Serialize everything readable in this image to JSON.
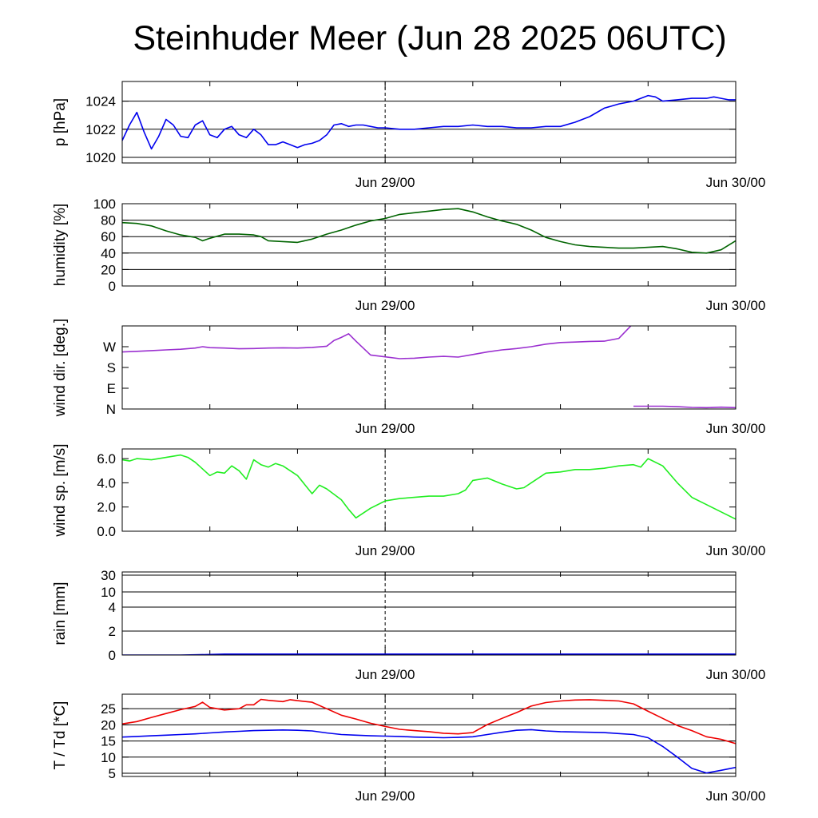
{
  "title": "Steinhuder Meer (Jun 28 2025 06UTC)",
  "colors": {
    "pressure": "#0000ee",
    "humidity": "#006400",
    "wind_dir": "#9b30d0",
    "wind_speed": "#22ee22",
    "rain": "#0000ee",
    "temperature": "#ee0000",
    "dewpoint": "#0000ee"
  },
  "chart_data": [
    {
      "type": "line",
      "id": "pressure",
      "ylabel": "p [hPa]",
      "x_ticks": [
        "Jun 29/00",
        "Jun 30/00"
      ],
      "ylim": [
        1019.6,
        1025.4
      ],
      "yticks": [
        1020,
        1022,
        1024
      ],
      "ytick_labels": [
        "1020",
        "1022",
        "1024"
      ],
      "grid": true,
      "series": [
        {
          "x": [
            0,
            0.5,
            1,
            1.5,
            2,
            2.5,
            3,
            3.5,
            4,
            4.5,
            5,
            5.5,
            6,
            6.5,
            7,
            7.5,
            8,
            8.5,
            9,
            9.5,
            10,
            10.5,
            11,
            11.5,
            12,
            12.5,
            13,
            13.5,
            14,
            14.5,
            15,
            15.5,
            16,
            16.5,
            17,
            17.5,
            18,
            19,
            20,
            21,
            22,
            23,
            24,
            25,
            26,
            27,
            28,
            29,
            30,
            31,
            32,
            33,
            34,
            35,
            36,
            36.5,
            37,
            38,
            39,
            40,
            40.5,
            41,
            41.5,
            42
          ],
          "y": [
            1021.2,
            1022.3,
            1023.2,
            1021.8,
            1020.6,
            1021.5,
            1022.7,
            1022.3,
            1021.5,
            1021.4,
            1022.3,
            1022.6,
            1021.6,
            1021.4,
            1022.0,
            1022.2,
            1021.6,
            1021.4,
            1022.0,
            1021.6,
            1020.9,
            1020.9,
            1021.1,
            1020.9,
            1020.7,
            1020.9,
            1021.0,
            1021.2,
            1021.6,
            1022.3,
            1022.4,
            1022.2,
            1022.3,
            1022.3,
            1022.2,
            1022.1,
            1022.1,
            1022.0,
            1022.0,
            1022.1,
            1022.2,
            1022.2,
            1022.3,
            1022.2,
            1022.2,
            1022.1,
            1022.1,
            1022.2,
            1022.2,
            1022.5,
            1022.9,
            1023.5,
            1023.8,
            1024.0,
            1024.4,
            1024.3,
            1024.0,
            1024.1,
            1024.2,
            1024.2,
            1024.3,
            1024.2,
            1024.1,
            1024.1
          ]
        }
      ]
    },
    {
      "type": "line",
      "id": "humidity",
      "ylabel": "humidity [%]",
      "x_ticks": [
        "Jun 29/00",
        "Jun 30/00"
      ],
      "ylim": [
        0,
        100
      ],
      "yticks": [
        0,
        20,
        40,
        60,
        80,
        100
      ],
      "ytick_labels": [
        "0",
        "20",
        "40",
        "60",
        "80",
        "100"
      ],
      "grid": true,
      "series": [
        {
          "x": [
            0,
            1,
            2,
            3,
            4,
            5,
            5.5,
            6,
            7,
            8,
            9,
            9.5,
            10,
            11,
            12,
            13,
            14,
            15,
            16,
            17,
            18,
            19,
            20,
            21,
            22,
            23,
            24,
            25,
            26,
            27,
            28,
            29,
            30,
            31,
            32,
            33,
            34,
            35,
            36,
            37,
            38,
            39,
            40,
            41,
            42
          ],
          "y": [
            77,
            76,
            73,
            67,
            62,
            59,
            55,
            58,
            63,
            63,
            62,
            60,
            55,
            54,
            53,
            57,
            63,
            68,
            74,
            79,
            82,
            87,
            89,
            91,
            93,
            94,
            90,
            84,
            79,
            75,
            68,
            59,
            54,
            50,
            48,
            47,
            46,
            46,
            47,
            48,
            45,
            41,
            40,
            44,
            55
          ]
        }
      ]
    },
    {
      "type": "line",
      "id": "wind_direction",
      "ylabel": "wind dir. [deg.]",
      "x_ticks": [
        "Jun 29/00",
        "Jun 30/00"
      ],
      "ylim": [
        0,
        360
      ],
      "yticks": [
        0,
        90,
        180,
        270
      ],
      "ytick_labels": [
        "N",
        "E",
        "S",
        "W"
      ],
      "grid": false,
      "series": [
        {
          "x": [
            0,
            1,
            2,
            3,
            4,
            5,
            5.5,
            6,
            7,
            8,
            9,
            10,
            11,
            12,
            13,
            14,
            14.5,
            15,
            15.5,
            16,
            17,
            18,
            19,
            20,
            21,
            22,
            23,
            24,
            25,
            26,
            27,
            28,
            29,
            30,
            31,
            32,
            33,
            34,
            35
          ],
          "y": [
            247,
            250,
            253,
            256,
            259,
            264,
            270,
            266,
            264,
            261,
            262,
            264,
            265,
            264,
            267,
            272,
            297,
            310,
            326,
            294,
            234,
            226,
            218,
            220,
            225,
            228,
            225,
            236,
            247,
            256,
            262,
            270,
            281,
            288,
            290,
            293,
            294,
            306,
            372
          ]
        },
        {
          "x": [
            35,
            36,
            37,
            38,
            39,
            40,
            41,
            42
          ],
          "y": [
            12,
            12,
            12,
            10,
            7,
            6,
            8,
            6
          ]
        },
        {
          "x": [
            35,
            36,
            37,
            38,
            39,
            40,
            41,
            42
          ],
          "y": [
            372,
            372,
            372,
            370,
            367,
            366,
            368,
            364
          ]
        }
      ]
    },
    {
      "type": "line",
      "id": "wind_speed",
      "ylabel": "wind sp. [m/s]",
      "x_ticks": [
        "Jun 29/00",
        "Jun 30/00"
      ],
      "ylim": [
        0,
        6.8
      ],
      "yticks": [
        0,
        2,
        4,
        6
      ],
      "ytick_labels": [
        "0.0",
        "2.0",
        "4.0",
        "6.0"
      ],
      "grid": false,
      "series": [
        {
          "x": [
            0,
            0.5,
            1,
            2,
            3,
            4,
            4.5,
            5,
            6,
            6.5,
            7,
            7.5,
            8,
            8.5,
            9,
            9.5,
            10,
            10.5,
            11,
            12,
            13,
            13.5,
            14,
            15,
            15.5,
            16,
            17,
            18,
            19,
            20,
            21,
            22,
            23,
            23.5,
            24,
            25,
            26,
            27,
            27.5,
            28,
            29,
            30,
            31,
            32,
            33,
            34,
            35,
            35.5,
            36,
            37,
            38,
            39,
            40,
            41,
            42
          ],
          "y": [
            5.9,
            5.8,
            6.0,
            5.9,
            6.1,
            6.3,
            6.1,
            5.7,
            4.6,
            4.9,
            4.8,
            5.4,
            5.0,
            4.3,
            5.9,
            5.5,
            5.3,
            5.6,
            5.4,
            4.6,
            3.1,
            3.8,
            3.5,
            2.6,
            1.8,
            1.1,
            1.9,
            2.5,
            2.7,
            2.8,
            2.9,
            2.9,
            3.1,
            3.4,
            4.2,
            4.4,
            3.9,
            3.5,
            3.6,
            4.0,
            4.8,
            4.9,
            5.1,
            5.1,
            5.2,
            5.4,
            5.5,
            5.3,
            6.0,
            5.4,
            4.0,
            2.8,
            2.2,
            1.6,
            1.0
          ]
        }
      ]
    },
    {
      "type": "area",
      "id": "rain",
      "ylabel": "rain [mm]",
      "x_ticks": [
        "Jun 29/00",
        "Jun 30/00"
      ],
      "ylim": [
        0,
        30
      ],
      "yticks": [
        0,
        2,
        4,
        10,
        30
      ],
      "ytick_labels": [
        "0",
        "2",
        "4",
        "10",
        "30"
      ],
      "grid": true,
      "series": [
        {
          "x": [
            0,
            4,
            5,
            6,
            6.5,
            7,
            42
          ],
          "y": [
            0,
            0,
            0.02,
            0.05,
            0.07,
            0.08,
            0.08
          ]
        }
      ]
    },
    {
      "type": "line",
      "id": "temperature",
      "ylabel": "T / Td [*C]",
      "x_ticks": [
        "Jun 29/00",
        "Jun 30/00"
      ],
      "ylim": [
        4,
        29.5
      ],
      "yticks": [
        5,
        10,
        15,
        20,
        25
      ],
      "ytick_labels": [
        "5",
        "10",
        "15",
        "20",
        "25"
      ],
      "grid": true,
      "series": [
        {
          "x": [
            0,
            1,
            2,
            3,
            4,
            5,
            5.5,
            6,
            7,
            8,
            8.5,
            9,
            9.5,
            10,
            11,
            11.5,
            12,
            13,
            14,
            15,
            16,
            17,
            18,
            19,
            20,
            21,
            22,
            23,
            24,
            25,
            26,
            27,
            28,
            29,
            30,
            31,
            32,
            33,
            34,
            35,
            36,
            37,
            38,
            39,
            40,
            41,
            42
          ],
          "y": [
            20.3,
            21.0,
            22.3,
            23.5,
            24.7,
            25.7,
            27,
            25.4,
            24.6,
            25.0,
            26.2,
            26.2,
            27.9,
            27.6,
            27.2,
            27.8,
            27.5,
            27.0,
            25.0,
            23.0,
            21.8,
            20.5,
            19.5,
            18.6,
            18.2,
            17.9,
            17.4,
            17.2,
            17.6,
            20.1,
            22.0,
            23.8,
            25.8,
            26.9,
            27.4,
            27.7,
            27.8,
            27.6,
            27.4,
            26.5,
            24.2,
            22.0,
            19.8,
            18.2,
            16.3,
            15.5,
            14.2
          ]
        },
        {
          "x": [
            0,
            1,
            2,
            3,
            4,
            5,
            6,
            7,
            8,
            9,
            10,
            11,
            12,
            13,
            14,
            15,
            16,
            17,
            18,
            19,
            20,
            21,
            22,
            23,
            24,
            25,
            26,
            27,
            28,
            29,
            30,
            31,
            32,
            33,
            34,
            35,
            36,
            37,
            38,
            39,
            40,
            41,
            42
          ],
          "y": [
            16.2,
            16.4,
            16.6,
            16.8,
            17.0,
            17.2,
            17.5,
            17.8,
            18.0,
            18.2,
            18.3,
            18.4,
            18.3,
            18.1,
            17.5,
            17.0,
            16.8,
            16.6,
            16.5,
            16.4,
            16.2,
            16.1,
            16.0,
            16.1,
            16.3,
            17.0,
            17.7,
            18.3,
            18.5,
            18.1,
            17.9,
            17.8,
            17.7,
            17.6,
            17.3,
            17.0,
            16.0,
            13.3,
            10.0,
            6.5,
            5.1,
            5.9,
            6.8
          ]
        }
      ]
    }
  ]
}
